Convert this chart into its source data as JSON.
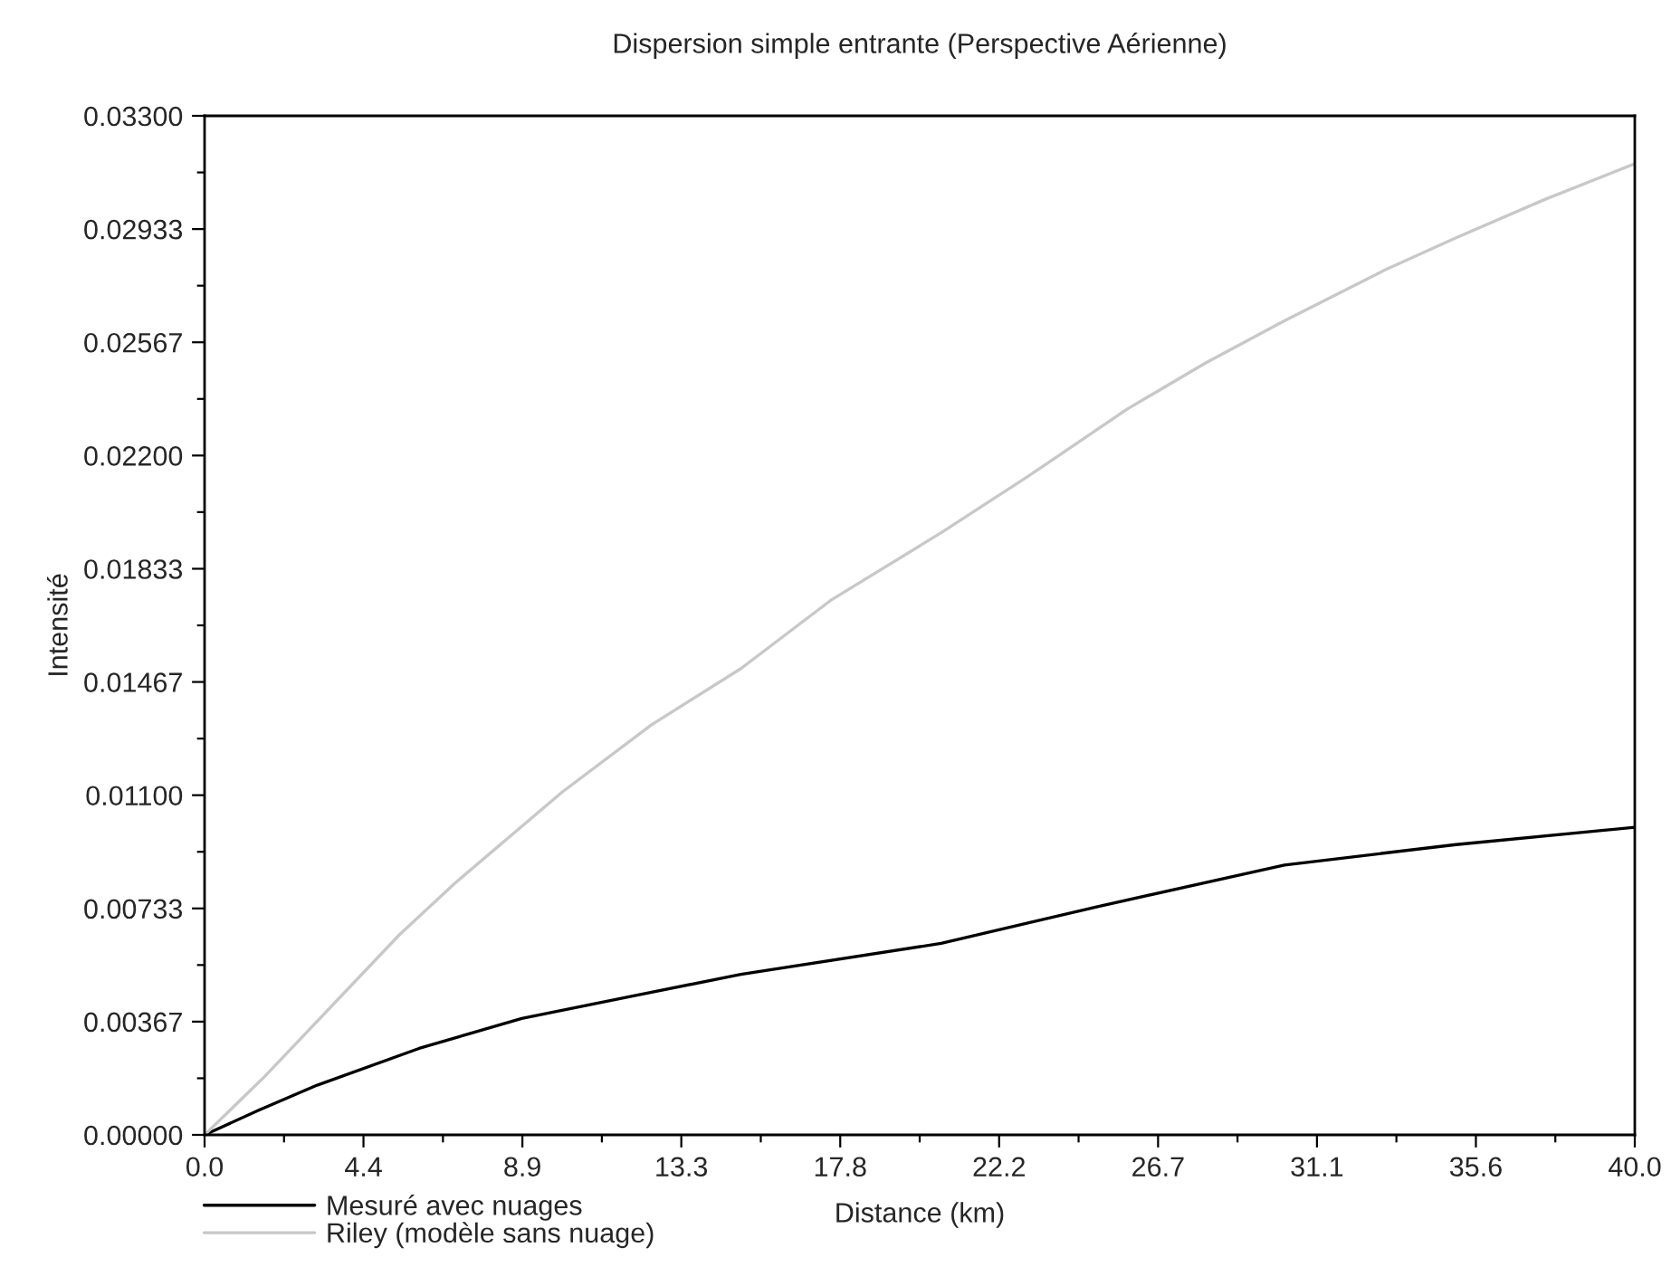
{
  "chart_data": {
    "type": "line",
    "title": "Dispersion simple entrante (Perspective Aérienne)",
    "xlabel": "Distance (km)",
    "ylabel": "Intensité",
    "series": [
      {
        "name": "Mesuré avec nuages",
        "color": "#000000",
        "x": [
          0,
          1.5,
          3.15,
          6,
          8.87,
          12,
          15,
          20.6,
          25,
          30.2,
          35,
          40
        ],
        "values": [
          0,
          0.00079,
          0.00161,
          0.0028,
          0.00377,
          0.0045,
          0.0052,
          0.0062,
          0.0074,
          0.00874,
          0.0094,
          0.00996
        ]
      },
      {
        "name": "Riley (modèle sans nuage)",
        "color": "#c8c8c8",
        "x": [
          0,
          1.63,
          5.44,
          7.0,
          10.0,
          12.5,
          15,
          17.5,
          20.6,
          23,
          25.8,
          28,
          30.2,
          33,
          35,
          37.5,
          40
        ],
        "values": [
          0,
          0.00183,
          0.00647,
          0.00815,
          0.0111,
          0.01328,
          0.0151,
          0.0173,
          0.0195,
          0.0213,
          0.0235,
          0.025,
          0.02636,
          0.028,
          0.02905,
          0.0303,
          0.03145
        ]
      }
    ],
    "xlim": [
      0,
      40
    ],
    "ylim": [
      0,
      0.033
    ],
    "xticks": [
      {
        "value": 0,
        "label": "0.0"
      },
      {
        "value": 2.222,
        "label": null
      },
      {
        "value": 4.444,
        "label": "4.4"
      },
      {
        "value": 6.667,
        "label": null
      },
      {
        "value": 8.889,
        "label": "8.9"
      },
      {
        "value": 11.111,
        "label": null
      },
      {
        "value": 13.333,
        "label": "13.3"
      },
      {
        "value": 15.556,
        "label": null
      },
      {
        "value": 17.778,
        "label": "17.8"
      },
      {
        "value": 20,
        "label": null
      },
      {
        "value": 22.222,
        "label": "22.2"
      },
      {
        "value": 24.444,
        "label": null
      },
      {
        "value": 26.667,
        "label": "26.7"
      },
      {
        "value": 28.889,
        "label": null
      },
      {
        "value": 31.111,
        "label": "31.1"
      },
      {
        "value": 33.333,
        "label": null
      },
      {
        "value": 35.556,
        "label": "35.6"
      },
      {
        "value": 37.778,
        "label": null
      },
      {
        "value": 40,
        "label": "40.0"
      }
    ],
    "yticks": [
      {
        "value": 0,
        "label": "0.00000"
      },
      {
        "value": 0.001833,
        "label": null
      },
      {
        "value": 0.003667,
        "label": "0.00367"
      },
      {
        "value": 0.0055,
        "label": null
      },
      {
        "value": 0.007333,
        "label": "0.00733"
      },
      {
        "value": 0.009167,
        "label": null
      },
      {
        "value": 0.011,
        "label": "0.01100"
      },
      {
        "value": 0.012833,
        "label": null
      },
      {
        "value": 0.014667,
        "label": "0.01467"
      },
      {
        "value": 0.0165,
        "label": null
      },
      {
        "value": 0.018333,
        "label": "0.01833"
      },
      {
        "value": 0.020167,
        "label": null
      },
      {
        "value": 0.022,
        "label": "0.02200"
      },
      {
        "value": 0.023833,
        "label": null
      },
      {
        "value": 0.025667,
        "label": "0.02567"
      },
      {
        "value": 0.0275,
        "label": null
      },
      {
        "value": 0.029333,
        "label": "0.02933"
      },
      {
        "value": 0.031167,
        "label": null
      },
      {
        "value": 0.033,
        "label": "0.03300"
      }
    ],
    "legend": "bottom left",
    "grid": false,
    "marker": "none",
    "line_style": "solid"
  }
}
